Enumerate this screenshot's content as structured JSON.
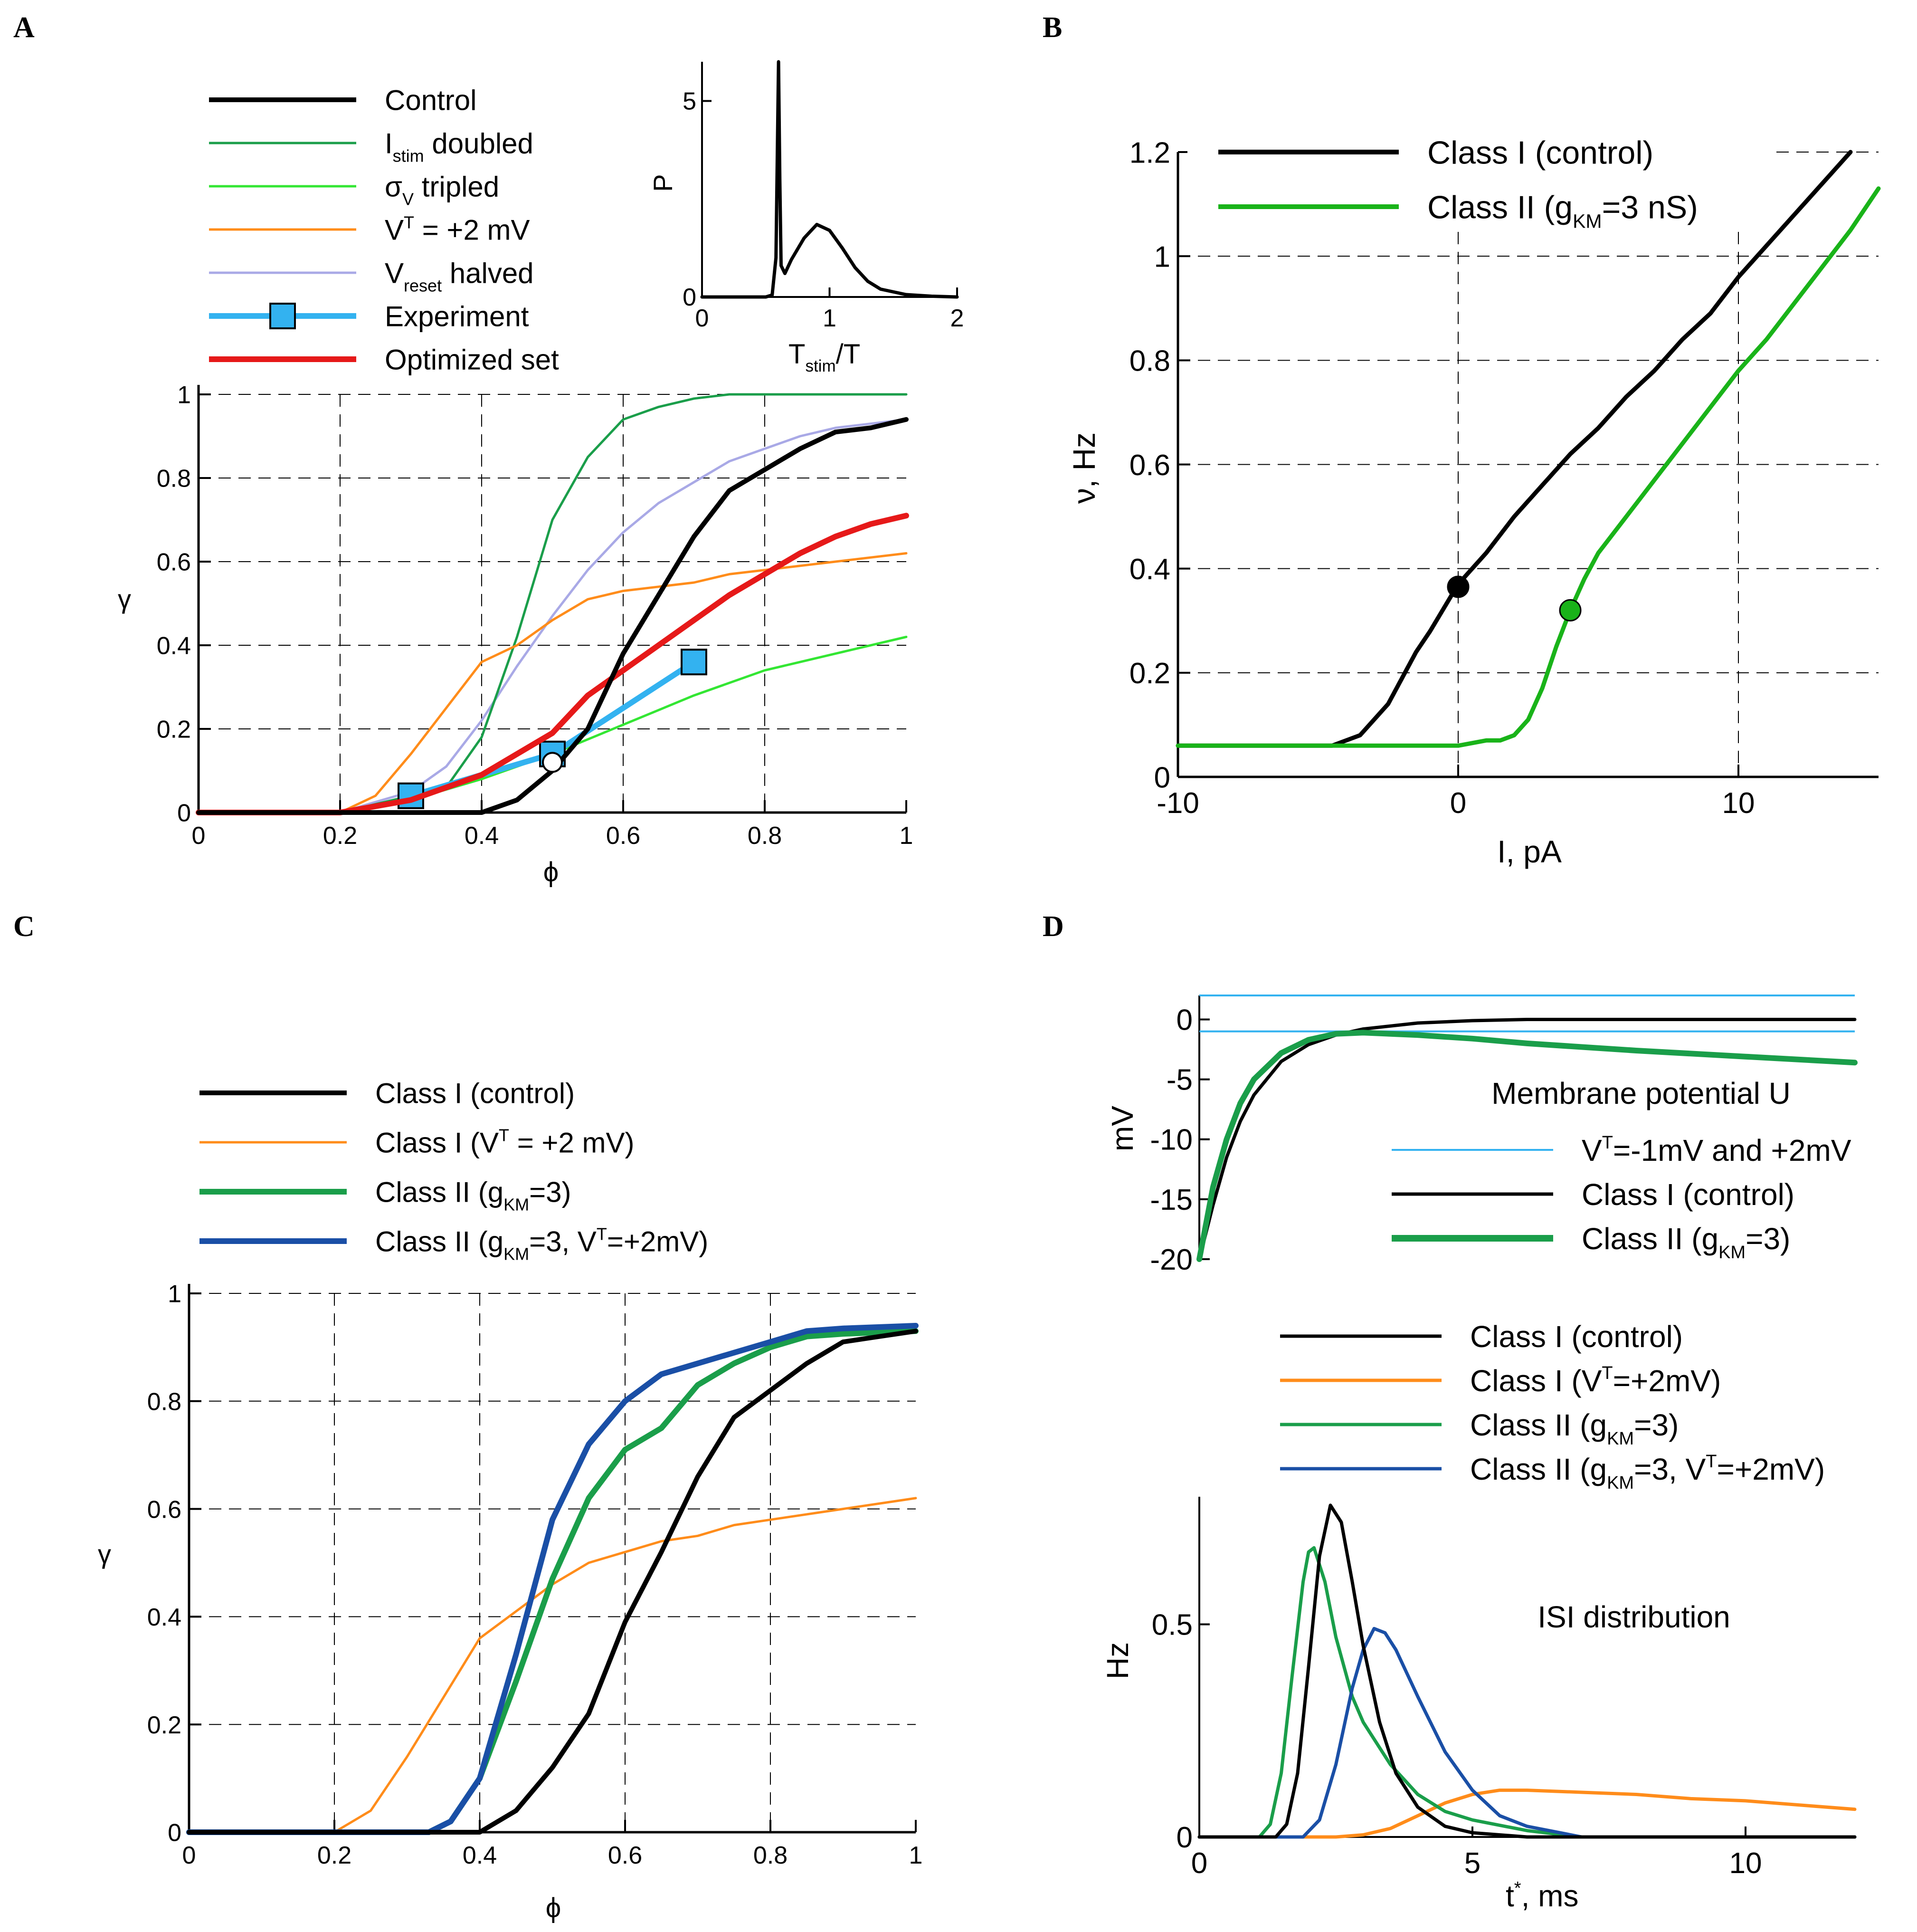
{
  "colors": {
    "black": "#000000",
    "green": "#1a9e4a",
    "lightgreen": "#33e633",
    "green2": "#19b319",
    "orange": "#ff8c1a",
    "lavender": "#a9a9e6",
    "lightblue": "#1ab2f0",
    "red": "#e61919",
    "blue": "#1a4fa6",
    "sky": "#33b2f0"
  },
  "chart_data": [
    {
      "panel": "A",
      "type": "line",
      "xlabel": "ϕ",
      "ylabel": "γ",
      "xlim": [
        0,
        1
      ],
      "ylim": [
        0,
        1
      ],
      "xticks": [
        "0",
        "0.2",
        "0.4",
        "0.6",
        "0.8",
        "1"
      ],
      "yticks": [
        "0",
        "0.2",
        "0.4",
        "0.6",
        "0.8",
        "1"
      ],
      "grid": true,
      "legend": [
        {
          "main": "Control",
          "sub": "",
          "suffix": ""
        },
        {
          "main": "I",
          "sub": "stim",
          "suffix": " doubled"
        },
        {
          "main": "σ",
          "sub": "V",
          "suffix": " tripled"
        },
        {
          "main": "V",
          "sup": "T",
          "suffix": " = +2 mV"
        },
        {
          "main": "V",
          "sub": "reset",
          "suffix": " halved"
        },
        {
          "main": "Experiment",
          "sub": "",
          "suffix": ""
        },
        {
          "main": "Optimized set",
          "sub": "",
          "suffix": ""
        }
      ],
      "series": [
        {
          "name": "Control",
          "color": "black",
          "x": [
            0,
            0.4,
            0.45,
            0.5,
            0.55,
            0.6,
            0.65,
            0.7,
            0.75,
            0.8,
            0.85,
            0.9,
            0.95,
            1.0
          ],
          "y": [
            0,
            0,
            0.03,
            0.1,
            0.2,
            0.38,
            0.52,
            0.66,
            0.77,
            0.82,
            0.87,
            0.91,
            0.92,
            0.94
          ]
        },
        {
          "name": "Istim doubled",
          "color": "green",
          "x": [
            0,
            0.2,
            0.3,
            0.35,
            0.4,
            0.45,
            0.5,
            0.55,
            0.6,
            0.65,
            0.7,
            0.75,
            0.8,
            1.0
          ],
          "y": [
            0,
            0,
            0.04,
            0.06,
            0.18,
            0.42,
            0.7,
            0.85,
            0.94,
            0.97,
            0.99,
            1.0,
            1.0,
            1.0
          ]
        },
        {
          "name": "σV tripled",
          "color": "lightgreen",
          "x": [
            0,
            0.2,
            0.3,
            0.4,
            0.5,
            0.6,
            0.7,
            0.8,
            0.9,
            1.0
          ],
          "y": [
            0,
            0,
            0.03,
            0.08,
            0.14,
            0.21,
            0.28,
            0.34,
            0.38,
            0.42
          ]
        },
        {
          "name": "VT = +2 mV",
          "color": "orange",
          "x": [
            0,
            0.2,
            0.25,
            0.3,
            0.35,
            0.4,
            0.45,
            0.5,
            0.55,
            0.6,
            0.65,
            0.7,
            0.75,
            0.8,
            0.9,
            1.0
          ],
          "y": [
            0,
            0,
            0.04,
            0.14,
            0.25,
            0.36,
            0.4,
            0.46,
            0.51,
            0.53,
            0.54,
            0.55,
            0.57,
            0.58,
            0.6,
            0.62
          ]
        },
        {
          "name": "Vreset halved",
          "color": "lavender",
          "x": [
            0,
            0.2,
            0.3,
            0.35,
            0.4,
            0.45,
            0.5,
            0.55,
            0.6,
            0.65,
            0.7,
            0.75,
            0.8,
            0.85,
            0.9,
            1.0
          ],
          "y": [
            0,
            0,
            0.05,
            0.11,
            0.22,
            0.35,
            0.47,
            0.58,
            0.67,
            0.74,
            0.79,
            0.84,
            0.87,
            0.9,
            0.92,
            0.94
          ]
        },
        {
          "name": "Optimized set",
          "color": "red",
          "x": [
            0,
            0.2,
            0.3,
            0.4,
            0.5,
            0.55,
            0.6,
            0.65,
            0.7,
            0.75,
            0.8,
            0.85,
            0.9,
            0.95,
            1.0
          ],
          "y": [
            0,
            0,
            0.03,
            0.09,
            0.19,
            0.28,
            0.34,
            0.4,
            0.46,
            0.52,
            0.57,
            0.62,
            0.66,
            0.69,
            0.71
          ]
        },
        {
          "name": "Experiment",
          "color": "sky",
          "x": [
            0.3,
            0.5,
            0.7
          ],
          "y": [
            0.04,
            0.14,
            0.36
          ],
          "markers": true
        }
      ],
      "open_point": {
        "x": 0.5,
        "y": 0.12
      },
      "inset": {
        "xlabel": "T",
        "xlabel_sub": "stim",
        "xlabel_suffix": "/T",
        "ylabel": "P",
        "xlim": [
          0,
          2
        ],
        "ylim": [
          0,
          6
        ],
        "xticks": [
          "0",
          "1",
          "2"
        ],
        "yticks": [
          "0",
          "5"
        ],
        "x": [
          0,
          0.5,
          0.55,
          0.58,
          0.59,
          0.6,
          0.61,
          0.62,
          0.65,
          0.7,
          0.8,
          0.9,
          1.0,
          1.1,
          1.2,
          1.3,
          1.4,
          1.6,
          1.8,
          2.0
        ],
        "y": [
          0,
          0,
          0.05,
          1.0,
          3.5,
          6.0,
          3.0,
          0.8,
          0.6,
          0.95,
          1.5,
          1.85,
          1.7,
          1.25,
          0.75,
          0.4,
          0.2,
          0.06,
          0.02,
          0
        ]
      }
    },
    {
      "panel": "B",
      "type": "line",
      "xlabel": "I, pA",
      "ylabel": "ν, Hz",
      "xlim": [
        -10,
        15
      ],
      "ylim": [
        0,
        1.2
      ],
      "xticks": [
        "-10",
        "0",
        "10"
      ],
      "yticks": [
        "0",
        "0.2",
        "0.4",
        "0.6",
        "0.8",
        "1",
        "1.2"
      ],
      "grid": true,
      "legend": [
        {
          "main": "Class I (control)",
          "sub": "",
          "suffix": ""
        },
        {
          "main": "Class II (g",
          "sub": "KM",
          "suffix": "=3 nS)"
        }
      ],
      "series": [
        {
          "name": "Class I (control)",
          "color": "black",
          "x": [
            -10,
            -4.5,
            -3.5,
            -2.5,
            -1.5,
            -1,
            0,
            1,
            2,
            3,
            4,
            5,
            6,
            7,
            8,
            9,
            10,
            11,
            12,
            13,
            14
          ],
          "y": [
            0.06,
            0.06,
            0.08,
            0.14,
            0.24,
            0.28,
            0.37,
            0.43,
            0.5,
            0.56,
            0.62,
            0.67,
            0.73,
            0.78,
            0.84,
            0.89,
            0.96,
            1.02,
            1.08,
            1.14,
            1.2
          ]
        },
        {
          "name": "Class II (gKM=3 nS)",
          "color": "green2",
          "x": [
            -10,
            0,
            0.5,
            1,
            1.5,
            2,
            2.5,
            3,
            3.5,
            4,
            4.5,
            5,
            6,
            7,
            8,
            9,
            10,
            11,
            12,
            13,
            14,
            15
          ],
          "y": [
            0.06,
            0.06,
            0.065,
            0.07,
            0.07,
            0.08,
            0.11,
            0.17,
            0.25,
            0.32,
            0.38,
            0.43,
            0.5,
            0.57,
            0.64,
            0.71,
            0.78,
            0.84,
            0.91,
            0.98,
            1.05,
            1.13
          ]
        }
      ],
      "points": [
        {
          "x": 0,
          "y": 0.365,
          "color": "black"
        },
        {
          "x": 4,
          "y": 0.32,
          "color": "green2"
        }
      ]
    },
    {
      "panel": "C",
      "type": "line",
      "xlabel": "ϕ",
      "ylabel": "γ",
      "xlim": [
        0,
        1
      ],
      "ylim": [
        0,
        1
      ],
      "xticks": [
        "0",
        "0.2",
        "0.4",
        "0.6",
        "0.8",
        "1"
      ],
      "yticks": [
        "0",
        "0.2",
        "0.4",
        "0.6",
        "0.8",
        "1"
      ],
      "grid": true,
      "legend": [
        {
          "main": "Class I (control)",
          "sub": "",
          "suffix": ""
        },
        {
          "main": "Class I (V",
          "sup": "T",
          "suffix": " = +2 mV)"
        },
        {
          "main": "Class II (g",
          "sub": "KM",
          "suffix": "=3)"
        },
        {
          "main": "Class II (g",
          "sub": "KM",
          "suffix": "=3, V",
          "sup2": "T",
          "suffix2": "=+2mV)"
        }
      ],
      "series": [
        {
          "name": "Class I (control)",
          "color": "black",
          "x": [
            0,
            0.4,
            0.45,
            0.5,
            0.55,
            0.6,
            0.65,
            0.7,
            0.75,
            0.8,
            0.85,
            0.9,
            0.95,
            1.0
          ],
          "y": [
            0,
            0,
            0.04,
            0.12,
            0.22,
            0.39,
            0.52,
            0.66,
            0.77,
            0.82,
            0.87,
            0.91,
            0.92,
            0.93
          ]
        },
        {
          "name": "Class I (VT = +2 mV)",
          "color": "orange",
          "x": [
            0,
            0.2,
            0.25,
            0.3,
            0.35,
            0.4,
            0.45,
            0.5,
            0.55,
            0.6,
            0.65,
            0.7,
            0.75,
            0.8,
            0.9,
            1.0
          ],
          "y": [
            0,
            0,
            0.04,
            0.14,
            0.25,
            0.36,
            0.41,
            0.46,
            0.5,
            0.52,
            0.54,
            0.55,
            0.57,
            0.58,
            0.6,
            0.62
          ]
        },
        {
          "name": "Class II (gKM=3)",
          "color": "green",
          "x": [
            0,
            0.33,
            0.36,
            0.4,
            0.45,
            0.5,
            0.55,
            0.6,
            0.65,
            0.7,
            0.75,
            0.8,
            0.85,
            0.9,
            1.0
          ],
          "y": [
            0,
            0,
            0.02,
            0.1,
            0.28,
            0.47,
            0.62,
            0.71,
            0.75,
            0.83,
            0.87,
            0.9,
            0.92,
            0.925,
            0.93
          ]
        },
        {
          "name": "Class II (gKM=3, VT=+2mV)",
          "color": "blue",
          "x": [
            0,
            0.33,
            0.36,
            0.4,
            0.45,
            0.5,
            0.55,
            0.6,
            0.65,
            0.7,
            0.75,
            0.8,
            0.85,
            0.9,
            1.0
          ],
          "y": [
            0,
            0,
            0.02,
            0.1,
            0.33,
            0.58,
            0.72,
            0.8,
            0.85,
            0.87,
            0.89,
            0.91,
            0.93,
            0.935,
            0.94
          ]
        }
      ]
    },
    {
      "panel": "D-top",
      "type": "line",
      "xlabel": "",
      "ylabel": "mV",
      "title": "Membrane potential U",
      "xlim": [
        0,
        12
      ],
      "ylim": [
        -20,
        2
      ],
      "yticks": [
        "-20",
        "-15",
        "-10",
        "-5",
        "0"
      ],
      "grid": false,
      "legend": [
        {
          "main": "V",
          "sup": "T",
          "suffix": "=-1mV and +2mV"
        },
        {
          "main": "Class I (control)",
          "sub": "",
          "suffix": ""
        },
        {
          "main": "Class II (g",
          "sub": "KM",
          "suffix": "=3)"
        }
      ],
      "hlines": [
        {
          "y": 2,
          "color": "sky"
        },
        {
          "y": -1,
          "color": "sky"
        }
      ],
      "series": [
        {
          "name": "Class I (control)",
          "color": "black",
          "x": [
            0,
            0.25,
            0.5,
            0.75,
            1.0,
            1.5,
            2.0,
            2.5,
            3.0,
            4.0,
            5.0,
            6.0,
            8.0,
            10.0,
            12.0
          ],
          "y": [
            -20,
            -15.5,
            -11.5,
            -8.5,
            -6.3,
            -3.5,
            -2.1,
            -1.3,
            -0.8,
            -0.3,
            -0.1,
            0,
            0,
            0,
            0
          ]
        },
        {
          "name": "Class II (gKM=3)",
          "color": "green",
          "x": [
            0,
            0.25,
            0.5,
            0.75,
            1.0,
            1.5,
            2.0,
            2.5,
            3.0,
            4.0,
            5.0,
            6.0,
            8.0,
            10.0,
            12.0
          ],
          "y": [
            -20,
            -14,
            -10,
            -7,
            -5,
            -2.8,
            -1.7,
            -1.2,
            -1.1,
            -1.3,
            -1.6,
            -2.0,
            -2.6,
            -3.1,
            -3.6
          ]
        }
      ]
    },
    {
      "panel": "D-bottom",
      "type": "line",
      "xlabel": "t",
      "xlabel_sup": "*",
      "xlabel_suffix": ", ms",
      "ylabel": "Hz",
      "title": "ISI distribution",
      "xlim": [
        0,
        12
      ],
      "ylim": [
        0,
        0.8
      ],
      "xticks": [
        "0",
        "5",
        "10"
      ],
      "yticks": [
        "0",
        "0.5"
      ],
      "grid": false,
      "legend": [
        {
          "main": "Class I (control)",
          "sub": "",
          "suffix": ""
        },
        {
          "main": "Class I (V",
          "sup": "T",
          "suffix": "=+2mV)"
        },
        {
          "main": "Class II (g",
          "sub": "KM",
          "suffix": "=3)"
        },
        {
          "main": "Class II (g",
          "sub": "KM",
          "suffix": "=3, V",
          "sup2": "T",
          "suffix2": "=+2mV)"
        }
      ],
      "series": [
        {
          "name": "Class I (control)",
          "color": "black",
          "x": [
            0,
            1.4,
            1.6,
            1.8,
            2.0,
            2.2,
            2.4,
            2.6,
            2.8,
            3.0,
            3.3,
            3.6,
            4.0,
            4.5,
            5.0,
            6.0,
            12.0
          ],
          "y": [
            0,
            0,
            0.03,
            0.15,
            0.4,
            0.66,
            0.78,
            0.74,
            0.6,
            0.45,
            0.27,
            0.15,
            0.07,
            0.025,
            0.01,
            0,
            0
          ]
        },
        {
          "name": "Class I (VT=+2mV)",
          "color": "orange",
          "x": [
            0,
            2.5,
            3.0,
            3.5,
            4.0,
            4.5,
            5.0,
            5.5,
            6.0,
            7.0,
            8.0,
            9.0,
            10.0,
            11.0,
            12.0
          ],
          "y": [
            0,
            0,
            0.005,
            0.02,
            0.05,
            0.08,
            0.1,
            0.11,
            0.11,
            0.105,
            0.1,
            0.09,
            0.085,
            0.075,
            0.065
          ]
        },
        {
          "name": "Class II (gKM=3)",
          "color": "green",
          "x": [
            0,
            1.1,
            1.3,
            1.5,
            1.7,
            1.9,
            2.0,
            2.1,
            2.3,
            2.5,
            2.8,
            3.0,
            3.5,
            4.0,
            4.5,
            5.0,
            6.0,
            7.0,
            12.0
          ],
          "y": [
            0,
            0,
            0.03,
            0.15,
            0.38,
            0.6,
            0.67,
            0.68,
            0.6,
            0.47,
            0.33,
            0.27,
            0.17,
            0.1,
            0.06,
            0.04,
            0.015,
            0,
            0
          ]
        },
        {
          "name": "Class II (gKM=3, VT=+2mV)",
          "color": "blue",
          "x": [
            0,
            1.9,
            2.2,
            2.5,
            2.8,
            3.0,
            3.2,
            3.4,
            3.6,
            4.0,
            4.5,
            5.0,
            5.5,
            6.0,
            7.0,
            12.0
          ],
          "y": [
            0,
            0,
            0.04,
            0.17,
            0.35,
            0.44,
            0.49,
            0.48,
            0.44,
            0.33,
            0.2,
            0.11,
            0.05,
            0.025,
            0,
            0
          ]
        }
      ]
    }
  ],
  "panel_labels": [
    "A",
    "B",
    "C",
    "D"
  ]
}
